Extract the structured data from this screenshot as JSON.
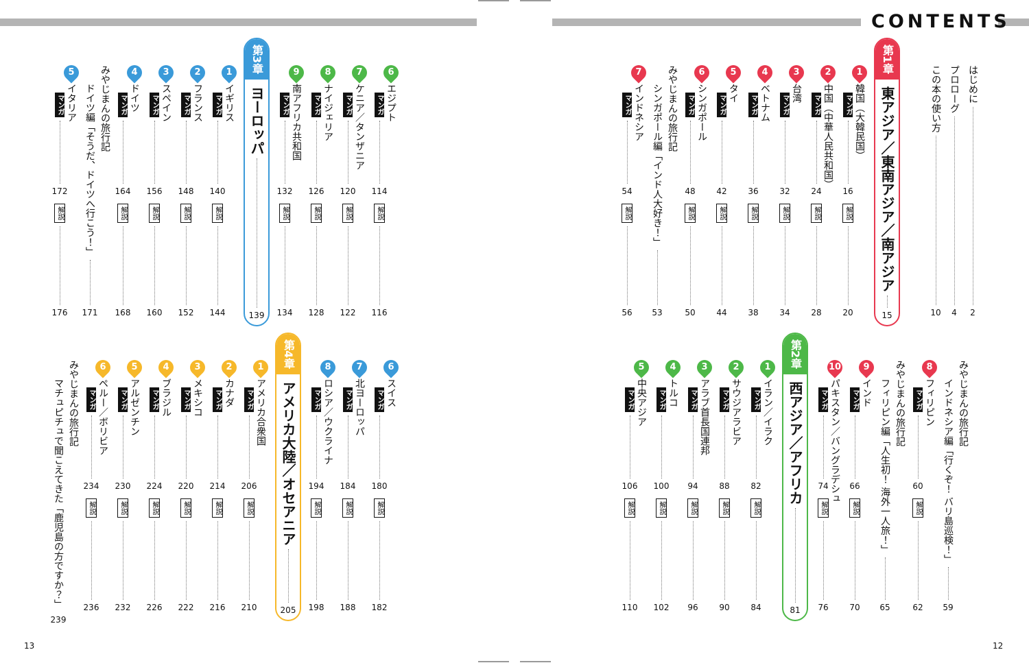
{
  "header": {
    "title": "CONTENTS"
  },
  "labels": {
    "manga": "マンガ",
    "commentary": "解説"
  },
  "front_matter": [
    {
      "title": "はじめに",
      "page": 2
    },
    {
      "title": "プロローグ",
      "page": 4
    },
    {
      "title": "この本の使い方",
      "page": 10
    }
  ],
  "chapters": [
    {
      "label": "第1章",
      "title": "東アジア／東南アジア／南アジア",
      "page": 15,
      "color": "#e8384f",
      "entries": [
        {
          "number": 1,
          "name": "韓国（大韓民国）",
          "manga_page": 16,
          "commentary_page": 20
        },
        {
          "number": 2,
          "name": "中国（中華人民共和国）",
          "manga_page": 24,
          "commentary_page": 28
        },
        {
          "number": 3,
          "name": "台湾",
          "manga_page": 32,
          "commentary_page": 34
        },
        {
          "number": 4,
          "name": "ベトナム",
          "manga_page": 36,
          "commentary_page": 38
        },
        {
          "number": 5,
          "name": "タイ",
          "manga_page": 42,
          "commentary_page": 44
        },
        {
          "number": 6,
          "name": "シンガポール",
          "manga_page": 48,
          "commentary_page": 50
        },
        {
          "series": "みやじまんの旅行記",
          "title": "シンガポール編「インド人大好き！」",
          "page": 53
        },
        {
          "number": 7,
          "name": "インドネシア",
          "manga_page": 54,
          "commentary_page": 56
        },
        {
          "series": "みやじまんの旅行記",
          "title": "インドネシア編「行くぞ！ バリ島巡検！」",
          "page": 59
        },
        {
          "number": 8,
          "name": "フィリピン",
          "manga_page": 60,
          "commentary_page": 62
        },
        {
          "series": "みやじまんの旅行記",
          "title": "フィリピン編「人生初！ 海外一人旅！」",
          "page": 65
        },
        {
          "number": 9,
          "name": "インド",
          "manga_page": 66,
          "commentary_page": 70
        },
        {
          "number": 10,
          "name": "パキスタン／バングラデシュ",
          "manga_page": 74,
          "commentary_page": 76
        }
      ]
    },
    {
      "label": "第2章",
      "title": "西アジア／アフリカ",
      "page": 81,
      "color": "#4db848",
      "entries": [
        {
          "number": 1,
          "name": "イラン／イラク",
          "manga_page": 82,
          "commentary_page": 84
        },
        {
          "number": 2,
          "name": "サウジアラビア",
          "manga_page": 88,
          "commentary_page": 90
        },
        {
          "number": 3,
          "name": "アラブ首長国連邦",
          "manga_page": 94,
          "commentary_page": 96
        },
        {
          "number": 4,
          "name": "トルコ",
          "manga_page": 100,
          "commentary_page": 102
        },
        {
          "number": 5,
          "name": "中央アジア",
          "manga_page": 106,
          "commentary_page": 110
        },
        {
          "number": 6,
          "name": "エジプト",
          "manga_page": 114,
          "commentary_page": 116
        },
        {
          "number": 7,
          "name": "ケニア／タンザニア",
          "manga_page": 120,
          "commentary_page": 122
        },
        {
          "number": 8,
          "name": "ナイジェリア",
          "manga_page": 126,
          "commentary_page": 128
        },
        {
          "number": 9,
          "name": "南アフリカ共和国",
          "manga_page": 132,
          "commentary_page": 134
        }
      ]
    },
    {
      "label": "第3章",
      "title": "ヨーロッパ",
      "page": 139,
      "color": "#3a9ad9",
      "entries": [
        {
          "number": 1,
          "name": "イギリス",
          "manga_page": 140,
          "commentary_page": 144
        },
        {
          "number": 2,
          "name": "フランス",
          "manga_page": 148,
          "commentary_page": 152
        },
        {
          "number": 3,
          "name": "スペイン",
          "manga_page": 156,
          "commentary_page": 160
        },
        {
          "number": 4,
          "name": "ドイツ",
          "manga_page": 164,
          "commentary_page": 168
        },
        {
          "series": "みやじまんの旅行記",
          "title": "ドイツ編「そうだ、ドイツへ行こう！」",
          "page": 171
        },
        {
          "number": 5,
          "name": "イタリア",
          "manga_page": 172,
          "commentary_page": 176
        },
        {
          "number": 6,
          "name": "スイス",
          "manga_page": 180,
          "commentary_page": 182
        },
        {
          "number": 7,
          "name": "北ヨーロッパ",
          "manga_page": 184,
          "commentary_page": 188
        },
        {
          "number": 8,
          "name": "ロシア／ウクライナ",
          "manga_page": 194,
          "commentary_page": 198
        }
      ]
    },
    {
      "label": "第4章",
      "title": "アメリカ大陸／オセアニア",
      "page": 205,
      "color": "#f6b82a",
      "entries": [
        {
          "number": 1,
          "name": "アメリカ合衆国",
          "manga_page": 206,
          "commentary_page": 210
        },
        {
          "number": 2,
          "name": "カナダ",
          "manga_page": 214,
          "commentary_page": 216
        },
        {
          "number": 3,
          "name": "メキシコ",
          "manga_page": 220,
          "commentary_page": 222
        },
        {
          "number": 4,
          "name": "ブラジル",
          "manga_page": 224,
          "commentary_page": 226
        },
        {
          "number": 5,
          "name": "アルゼンチン",
          "manga_page": 230,
          "commentary_page": 232
        },
        {
          "number": 6,
          "name": "ペルー／ボリビア",
          "manga_page": 234,
          "commentary_page": 236
        },
        {
          "series": "みやじまんの旅行記",
          "title": "マチュピチュで聞こえてきた「鹿児島の方ですか？」",
          "page": 239
        }
      ]
    }
  ],
  "page_numbers": {
    "left": 13,
    "right": 12
  }
}
